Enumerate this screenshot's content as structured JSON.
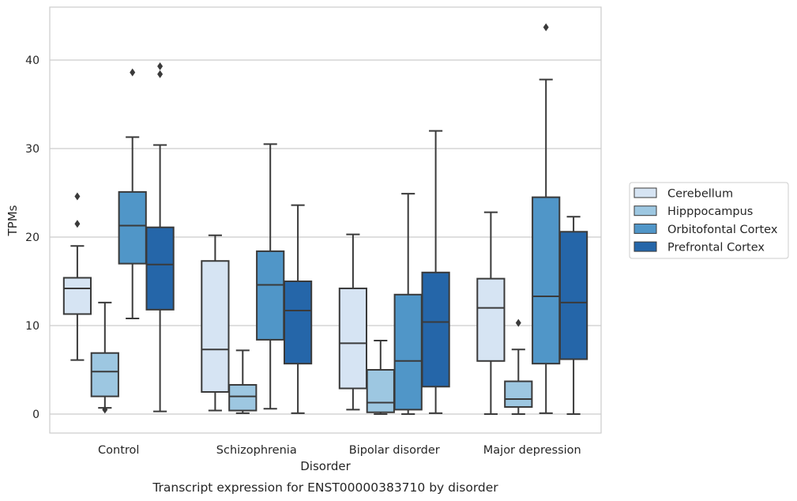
{
  "chart_data": {
    "type": "box",
    "caption": "Transcript expression for ENST00000383710 by disorder",
    "xlabel": "Disorder",
    "ylabel": "TPMs",
    "ylim": [
      -2,
      46
    ],
    "yticks": [
      0,
      10,
      20,
      30,
      40
    ],
    "grid": "horizontal",
    "legend_position": "right",
    "categories": [
      "Control",
      "Schizophrenia",
      "Bipolar disorder",
      "Major depression"
    ],
    "series": [
      {
        "name": "Cerebellum",
        "color": "#d6e4f3",
        "boxes": [
          {
            "whisker_low": 6.1,
            "q1": 11.3,
            "median": 14.2,
            "q3": 15.4,
            "whisker_high": 19.0,
            "outliers": [
              21.5,
              24.6
            ]
          },
          {
            "whisker_low": 0.4,
            "q1": 2.5,
            "median": 7.3,
            "q3": 17.3,
            "whisker_high": 20.2,
            "outliers": []
          },
          {
            "whisker_low": 0.5,
            "q1": 2.9,
            "median": 8.0,
            "q3": 14.2,
            "whisker_high": 20.3,
            "outliers": []
          },
          {
            "whisker_low": 0.0,
            "q1": 6.0,
            "median": 12.0,
            "q3": 15.3,
            "whisker_high": 22.8,
            "outliers": []
          }
        ]
      },
      {
        "name": "Hipppocampus",
        "color": "#9dc7e1",
        "boxes": [
          {
            "whisker_low": 0.7,
            "q1": 2.0,
            "median": 4.8,
            "q3": 6.9,
            "whisker_high": 12.6,
            "outliers": [
              0.5
            ]
          },
          {
            "whisker_low": 0.1,
            "q1": 0.4,
            "median": 2.0,
            "q3": 3.3,
            "whisker_high": 7.2,
            "outliers": []
          },
          {
            "whisker_low": 0.0,
            "q1": 0.2,
            "median": 1.3,
            "q3": 5.0,
            "whisker_high": 8.3,
            "outliers": []
          },
          {
            "whisker_low": 0.0,
            "q1": 0.8,
            "median": 1.7,
            "q3": 3.7,
            "whisker_high": 7.3,
            "outliers": [
              10.3
            ]
          }
        ]
      },
      {
        "name": "Orbitofontal Cortex",
        "color": "#5096c8",
        "boxes": [
          {
            "whisker_low": 10.8,
            "q1": 17.0,
            "median": 21.3,
            "q3": 25.1,
            "whisker_high": 31.3,
            "outliers": [
              38.6
            ]
          },
          {
            "whisker_low": 0.6,
            "q1": 8.4,
            "median": 14.6,
            "q3": 18.4,
            "whisker_high": 30.5,
            "outliers": []
          },
          {
            "whisker_low": 0.0,
            "q1": 0.5,
            "median": 6.0,
            "q3": 13.5,
            "whisker_high": 24.9,
            "outliers": []
          },
          {
            "whisker_low": 0.1,
            "q1": 5.7,
            "median": 13.3,
            "q3": 24.5,
            "whisker_high": 37.8,
            "outliers": [
              43.7
            ]
          }
        ]
      },
      {
        "name": "Prefrontal Cortex",
        "color": "#2566a9",
        "boxes": [
          {
            "whisker_low": 0.3,
            "q1": 11.8,
            "median": 16.9,
            "q3": 21.1,
            "whisker_high": 30.4,
            "outliers": [
              38.4,
              39.3
            ]
          },
          {
            "whisker_low": 0.1,
            "q1": 5.7,
            "median": 11.7,
            "q3": 15.0,
            "whisker_high": 23.6,
            "outliers": []
          },
          {
            "whisker_low": 0.1,
            "q1": 3.1,
            "median": 10.4,
            "q3": 16.0,
            "whisker_high": 32.0,
            "outliers": []
          },
          {
            "whisker_low": 0.0,
            "q1": 6.2,
            "median": 12.6,
            "q3": 20.6,
            "whisker_high": 22.3,
            "outliers": []
          }
        ]
      }
    ]
  }
}
